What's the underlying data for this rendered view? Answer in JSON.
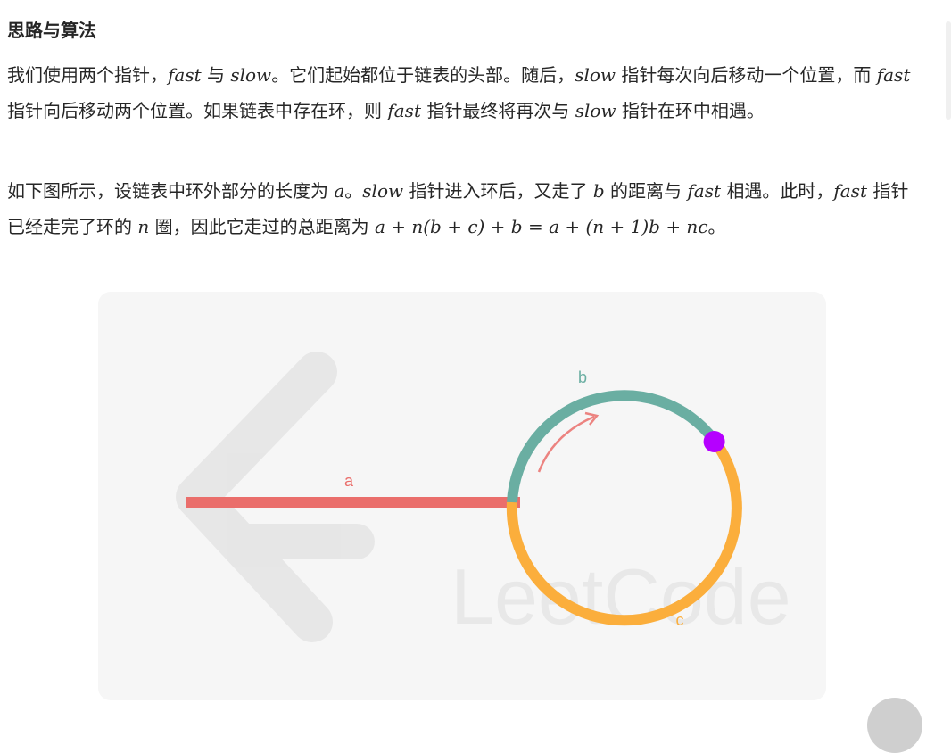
{
  "section": {
    "title": "思路与算法"
  },
  "p1": {
    "s1": "我们使用两个指针，",
    "m_fast": "fast",
    "s2": " 与 ",
    "m_slow": "slow",
    "s3": "。它们起始都位于链表的头部。随后，",
    "m_slow2": "slow",
    "s4": " 指针每次向后移动一个位置，而 ",
    "m_fast2": "fast",
    "s5": " 指针向后移动两个位置。如果链表中存在环，则 ",
    "m_fast3": "fast",
    "s6": " 指针最终将再次与 ",
    "m_slow3": "slow",
    "s7": " 指针在环中相遇。"
  },
  "p2": {
    "s1": "如下图所示，设链表中环外部分的长度为 ",
    "m_a": "a",
    "s2": "。",
    "m_slow": "slow",
    "s3": " 指针进入环后，又走了 ",
    "m_b": "b",
    "s4": " 的距离与 ",
    "m_fast": "fast",
    "s5": " 相遇。此时，",
    "m_fast2": "fast",
    "s6": " 指针已经走完了环的 ",
    "m_n": "n",
    "s7": " 圈，因此它走过的总距离为 ",
    "formula": "a + n(b + c) + b = a + (n + 1)b + nc",
    "s8": "。"
  },
  "figure": {
    "label_a": "a",
    "label_b": "b",
    "label_c": "c",
    "watermark": "LeetCode",
    "colors": {
      "line_a": "#ea6e6b",
      "arc_b": "#6aaea2",
      "arc_c": "#fbae3c",
      "meet_point": "#b500ff",
      "arrow": "#ea6e6b"
    }
  }
}
